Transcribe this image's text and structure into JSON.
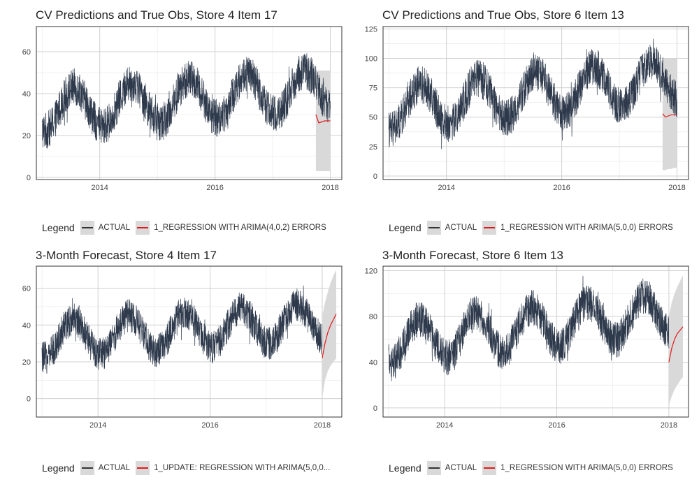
{
  "colors": {
    "actual": "#2e3a4c",
    "forecast": "#e31a1c",
    "band": "#d9d9d9",
    "grid": "#d0d0d0",
    "border": "#333333"
  },
  "chart_data": [
    {
      "type": "line",
      "title": "CV Predictions and True Obs, Store 4 Item 17",
      "xlabel": "",
      "ylabel": "",
      "xlim": [
        2012.9,
        2018.2
      ],
      "ylim": [
        -1,
        72
      ],
      "xticks": [
        2014,
        2016,
        2018
      ],
      "yticks": [
        0,
        20,
        40,
        60
      ],
      "grid": true,
      "legend_position": "bottom",
      "legend_title": "Legend",
      "series": [
        {
          "name": "ACTUAL",
          "start": 2013.0,
          "end": 2018.0,
          "base": 32,
          "amp": 10,
          "noise": 9,
          "peak": 0.55,
          "trend": 2.0
        },
        {
          "name": "1_REGRESSION WITH ARIMA(4,0,2) ERRORS",
          "kind": "cv",
          "x": [
            2017.75,
            2017.8,
            2017.85,
            2017.9,
            2017.95,
            2018.0
          ],
          "y": [
            30,
            26,
            26.5,
            27,
            27,
            27
          ],
          "lower": [
            3,
            3,
            3,
            3,
            3,
            3
          ],
          "upper": [
            51,
            51,
            51,
            51,
            51,
            51
          ]
        }
      ]
    },
    {
      "type": "line",
      "title": "CV Predictions and True Obs, Store 6 Item 13",
      "xlabel": "",
      "ylabel": "",
      "xlim": [
        2012.9,
        2018.2
      ],
      "ylim": [
        -3,
        127
      ],
      "xticks": [
        2014,
        2016,
        2018
      ],
      "yticks": [
        0,
        25,
        50,
        75,
        100,
        125
      ],
      "grid": true,
      "legend_position": "bottom",
      "legend_title": "Legend",
      "series": [
        {
          "name": "ACTUAL",
          "start": 2013.0,
          "end": 2018.0,
          "base": 57,
          "amp": 18,
          "noise": 16,
          "peak": 0.55,
          "trend": 5.0
        },
        {
          "name": "1_REGRESSION WITH ARIMA(5,0,0) ERRORS",
          "kind": "cv",
          "x": [
            2017.75,
            2017.8,
            2017.85,
            2017.9,
            2017.95,
            2018.0
          ],
          "y": [
            53,
            50,
            51,
            52,
            52,
            52
          ],
          "lower": [
            5,
            5,
            6,
            6,
            7,
            7
          ],
          "upper": [
            100,
            100,
            100,
            100,
            100,
            100
          ]
        }
      ]
    },
    {
      "type": "line",
      "title": "3-Month Forecast, Store 4 Item 17",
      "xlabel": "",
      "ylabel": "",
      "xlim": [
        2012.9,
        2018.35
      ],
      "ylim": [
        -10,
        72
      ],
      "xticks": [
        2014,
        2016,
        2018
      ],
      "yticks": [
        0,
        20,
        40,
        60
      ],
      "grid": true,
      "legend_position": "bottom",
      "legend_title": "Legend",
      "series": [
        {
          "name": "ACTUAL",
          "start": 2013.0,
          "end": 2018.0,
          "base": 32,
          "amp": 10,
          "noise": 9,
          "peak": 0.55,
          "trend": 2.0
        },
        {
          "name": "1_UPDATE: REGRESSION WITH ARIMA(5,0,0...",
          "kind": "fc",
          "x": [
            2018.0,
            2018.05,
            2018.1,
            2018.15,
            2018.2,
            2018.25
          ],
          "y": [
            22,
            30,
            36,
            40,
            43,
            46
          ],
          "lower": [
            0,
            10,
            15,
            18,
            20,
            22
          ],
          "upper": [
            45,
            52,
            58,
            63,
            67,
            70
          ]
        }
      ]
    },
    {
      "type": "line",
      "title": "3-Month Forecast, Store 6 Item 13",
      "xlabel": "",
      "ylabel": "",
      "xlim": [
        2012.9,
        2018.35
      ],
      "ylim": [
        -8,
        124
      ],
      "xticks": [
        2014,
        2016,
        2018
      ],
      "yticks": [
        0,
        40,
        80,
        120
      ],
      "grid": true,
      "legend_position": "bottom",
      "legend_title": "Legend",
      "series": [
        {
          "name": "ACTUAL",
          "start": 2013.0,
          "end": 2018.0,
          "base": 57,
          "amp": 18,
          "noise": 16,
          "peak": 0.55,
          "trend": 5.0
        },
        {
          "name": "1_REGRESSION WITH ARIMA(5,0,0) ERRORS",
          "kind": "fc",
          "x": [
            2018.0,
            2018.05,
            2018.1,
            2018.15,
            2018.2,
            2018.25
          ],
          "y": [
            40,
            52,
            60,
            65,
            68,
            71
          ],
          "lower": [
            2,
            10,
            16,
            20,
            24,
            27
          ],
          "upper": [
            80,
            92,
            100,
            106,
            111,
            116
          ]
        }
      ]
    }
  ]
}
